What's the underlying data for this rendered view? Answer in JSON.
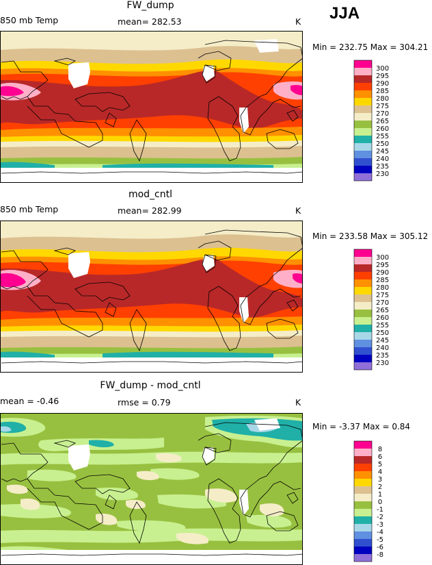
{
  "season": "JJA",
  "units_label": "K",
  "colors": {
    "c300": "#ff0090",
    "c295": "#ffb0c8",
    "c290": "#b82828",
    "c285": "#ff4000",
    "c280": "#ff9000",
    "c275": "#ffd800",
    "c270": "#dcc090",
    "c265": "#f5edc8",
    "c260": "#98c040",
    "c255": "#c8f090",
    "c250": "#20b0a8",
    "c245": "#a8d8e8",
    "c240": "#6090e0",
    "c235": "#3050d0",
    "c230": "#0000c0",
    "c225": "#9070d8"
  },
  "chart_data": [
    {
      "type": "heatmap",
      "title": "FW_dump",
      "left_label": "850 mb Temp",
      "mean_text": "mean= 282.53",
      "units": "K",
      "minmax_text": "Min = 232.75 Max = 304.21",
      "legend_levels": [
        "300",
        "295",
        "290",
        "285",
        "280",
        "275",
        "270",
        "265",
        "260",
        "255",
        "250",
        "245",
        "240",
        "235",
        "230"
      ]
    },
    {
      "type": "heatmap",
      "title": "mod_cntl",
      "left_label": "850 mb Temp",
      "mean_text": "mean= 282.99",
      "units": "K",
      "minmax_text": "Min = 233.58 Max = 305.12",
      "legend_levels": [
        "300",
        "295",
        "290",
        "285",
        "280",
        "275",
        "270",
        "265",
        "260",
        "255",
        "250",
        "245",
        "240",
        "235",
        "230"
      ]
    },
    {
      "type": "heatmap",
      "title": "FW_dump - mod_cntl",
      "left_label": "mean = -0.46",
      "mean_text": "rmse = 0.79",
      "units": "K",
      "minmax_text": "Min = -3.37 Max = 0.84",
      "legend_levels": [
        "8",
        "6",
        "5",
        "4",
        "3",
        "2",
        "1",
        "0",
        "-1",
        "-2",
        "-3",
        "-4",
        "-5",
        "-6",
        "-8"
      ]
    }
  ]
}
